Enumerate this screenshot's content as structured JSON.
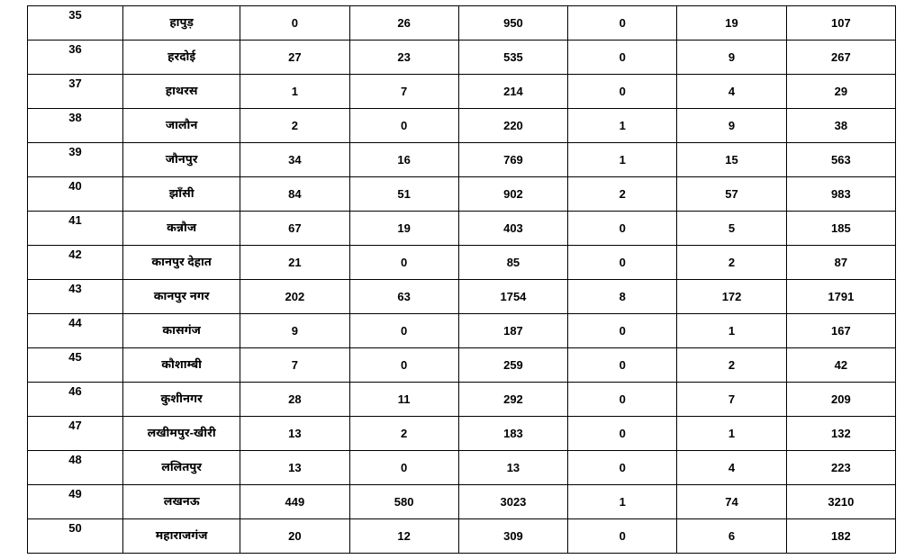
{
  "table": {
    "rows": [
      {
        "serial": "35",
        "name": "हापुड़",
        "c1": "0",
        "c2": "26",
        "c3": "950",
        "c4": "0",
        "c5": "19",
        "c6": "107"
      },
      {
        "serial": "36",
        "name": "हरदोई",
        "c1": "27",
        "c2": "23",
        "c3": "535",
        "c4": "0",
        "c5": "9",
        "c6": "267"
      },
      {
        "serial": "37",
        "name": "हाथरस",
        "c1": "1",
        "c2": "7",
        "c3": "214",
        "c4": "0",
        "c5": "4",
        "c6": "29"
      },
      {
        "serial": "38",
        "name": "जालौन",
        "c1": "2",
        "c2": "0",
        "c3": "220",
        "c4": "1",
        "c5": "9",
        "c6": "38"
      },
      {
        "serial": "39",
        "name": "जौनपुर",
        "c1": "34",
        "c2": "16",
        "c3": "769",
        "c4": "1",
        "c5": "15",
        "c6": "563"
      },
      {
        "serial": "40",
        "name": "झाँसी",
        "c1": "84",
        "c2": "51",
        "c3": "902",
        "c4": "2",
        "c5": "57",
        "c6": "983"
      },
      {
        "serial": "41",
        "name": "कन्नौज",
        "c1": "67",
        "c2": "19",
        "c3": "403",
        "c4": "0",
        "c5": "5",
        "c6": "185"
      },
      {
        "serial": "42",
        "name": "कानपुर देहात",
        "c1": "21",
        "c2": "0",
        "c3": "85",
        "c4": "0",
        "c5": "2",
        "c6": "87"
      },
      {
        "serial": "43",
        "name": "कानपुर नगर",
        "c1": "202",
        "c2": "63",
        "c3": "1754",
        "c4": "8",
        "c5": "172",
        "c6": "1791"
      },
      {
        "serial": "44",
        "name": "कासगंज",
        "c1": "9",
        "c2": "0",
        "c3": "187",
        "c4": "0",
        "c5": "1",
        "c6": "167"
      },
      {
        "serial": "45",
        "name": "कौशाम्बी",
        "c1": "7",
        "c2": "0",
        "c3": "259",
        "c4": "0",
        "c5": "2",
        "c6": "42"
      },
      {
        "serial": "46",
        "name": "कुशीनगर",
        "c1": "28",
        "c2": "11",
        "c3": "292",
        "c4": "0",
        "c5": "7",
        "c6": "209"
      },
      {
        "serial": "47",
        "name": "लखीमपुर-खीरी",
        "c1": "13",
        "c2": "2",
        "c3": "183",
        "c4": "0",
        "c5": "1",
        "c6": "132"
      },
      {
        "serial": "48",
        "name": "ललितपुर",
        "c1": "13",
        "c2": "0",
        "c3": "13",
        "c4": "0",
        "c5": "4",
        "c6": "223"
      },
      {
        "serial": "49",
        "name": "लखनऊ",
        "c1": "449",
        "c2": "580",
        "c3": "3023",
        "c4": "1",
        "c5": "74",
        "c6": "3210"
      },
      {
        "serial": "50",
        "name": "महाराजगंज",
        "c1": "20",
        "c2": "12",
        "c3": "309",
        "c4": "0",
        "c5": "6",
        "c6": "182"
      }
    ],
    "colors": {
      "border": "#000000",
      "background": "#ffffff",
      "text": "#000000"
    },
    "typography": {
      "font_size_pt": 10,
      "font_weight": "bold"
    }
  }
}
